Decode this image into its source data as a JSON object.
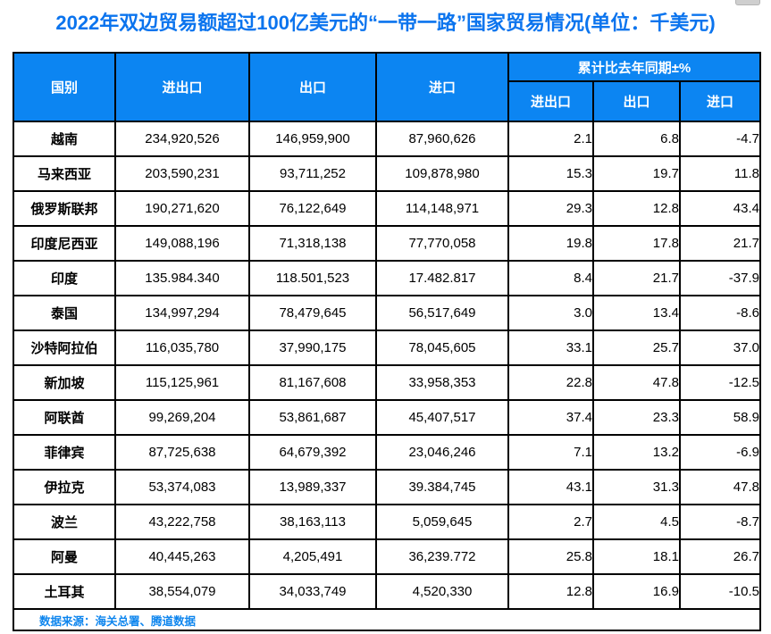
{
  "title": "2022年双边贸易额超过100亿美元的“一带一路”国家贸易情况(单位：千美元)",
  "colors": {
    "title_text": "#0b74ee",
    "header_bg": "#0c85f2",
    "header_text": "#ffffff",
    "border": "#000000",
    "source_text": "#0d85ee"
  },
  "chart_data": {
    "type": "table",
    "title": "2022年双边贸易额超过100亿美元的“一带一路”国家贸易情况(单位：千美元)",
    "group_header": "累计比去年同期±%",
    "headers": {
      "country": "国别",
      "total": "进出口",
      "export": "出口",
      "import": "进口",
      "pct_total": "进出口",
      "pct_export": "出口",
      "pct_import": "进口"
    },
    "rows": [
      {
        "country": "越南",
        "total": "234,920,526",
        "export": "146,959,900",
        "import": "87,960,626",
        "pct_total": "2.1",
        "pct_export": "6.8",
        "pct_import": "-4.7"
      },
      {
        "country": "马来西亚",
        "total": "203,590,231",
        "export": "93,711,252",
        "import": "109,878,980",
        "pct_total": "15.3",
        "pct_export": "19.7",
        "pct_import": "11.8"
      },
      {
        "country": "俄罗斯联邦",
        "total": "190,271,620",
        "export": "76,122,649",
        "import": "114,148,971",
        "pct_total": "29.3",
        "pct_export": "12.8",
        "pct_import": "43.4"
      },
      {
        "country": "印度尼西亚",
        "total": "149,088,196",
        "export": "71,318,138",
        "import": "77,770,058",
        "pct_total": "19.8",
        "pct_export": "17.8",
        "pct_import": "21.7"
      },
      {
        "country": "印度",
        "total": "135.984.340",
        "export": "118.501,523",
        "import": "17.482.817",
        "pct_total": "8.4",
        "pct_export": "21.7",
        "pct_import": "-37.9"
      },
      {
        "country": "泰国",
        "total": "134,997,294",
        "export": "78,479,645",
        "import": "56,517,649",
        "pct_total": "3.0",
        "pct_export": "13.4",
        "pct_import": "-8.6"
      },
      {
        "country": "沙特阿拉伯",
        "total": "116,035,780",
        "export": "37,990,175",
        "import": "78,045,605",
        "pct_total": "33.1",
        "pct_export": "25.7",
        "pct_import": "37.0"
      },
      {
        "country": "新加坡",
        "total": "115,125,961",
        "export": "81,167,608",
        "import": "33,958,353",
        "pct_total": "22.8",
        "pct_export": "47.8",
        "pct_import": "-12.5"
      },
      {
        "country": "阿联酋",
        "total": "99,269,204",
        "export": "53,861,687",
        "import": "45,407,517",
        "pct_total": "37.4",
        "pct_export": "23.3",
        "pct_import": "58.9"
      },
      {
        "country": "菲律宾",
        "total": "87,725,638",
        "export": "64,679,392",
        "import": "23,046,246",
        "pct_total": "7.1",
        "pct_export": "13.2",
        "pct_import": "-6.9"
      },
      {
        "country": "伊拉克",
        "total": "53,374,083",
        "export": "13,989,337",
        "import": "39.384,745",
        "pct_total": "43.1",
        "pct_export": "31.3",
        "pct_import": "47.8"
      },
      {
        "country": "波兰",
        "total": "43,222,758",
        "export": "38,163,113",
        "import": "5,059,645",
        "pct_total": "2.7",
        "pct_export": "4.5",
        "pct_import": "-8.7"
      },
      {
        "country": "阿曼",
        "total": "40,445,263",
        "export": "4,205,491",
        "import": "36,239.772",
        "pct_total": "25.8",
        "pct_export": "18.1",
        "pct_import": "26.7"
      },
      {
        "country": "土耳其",
        "total": "38,554,079",
        "export": "34,033,749",
        "import": "4,520,330",
        "pct_total": "12.8",
        "pct_export": "16.9",
        "pct_import": "-10.5"
      }
    ]
  },
  "footer": {
    "source": "数据来源：海关总署、腾道数据"
  }
}
